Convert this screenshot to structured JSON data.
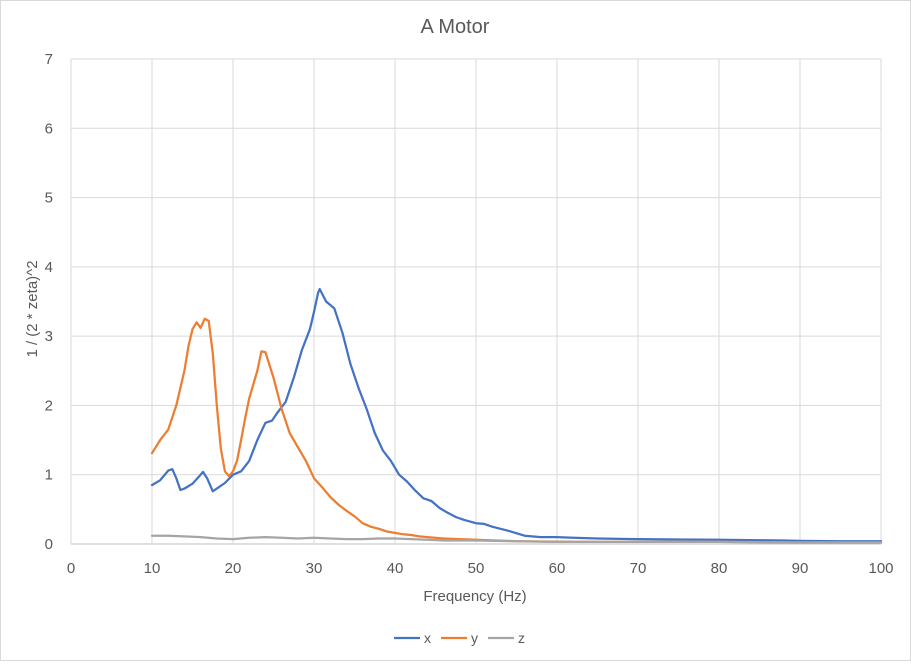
{
  "chart_data": {
    "type": "line",
    "title": "A Motor",
    "xlabel": "Frequency (Hz)",
    "ylabel": "1 / (2 * zeta)^2",
    "xlim": [
      0,
      100
    ],
    "ylim": [
      0,
      7
    ],
    "xticks": [
      0,
      10,
      20,
      30,
      40,
      50,
      60,
      70,
      80,
      90,
      100
    ],
    "yticks": [
      0,
      1,
      2,
      3,
      4,
      5,
      6,
      7
    ],
    "grid": true,
    "legend_position": "bottom",
    "series": [
      {
        "name": "x",
        "color": "#4472c4",
        "points": [
          [
            10,
            0.85
          ],
          [
            11,
            0.92
          ],
          [
            12,
            1.06
          ],
          [
            12.5,
            1.08
          ],
          [
            13,
            0.95
          ],
          [
            13.5,
            0.78
          ],
          [
            14,
            0.8
          ],
          [
            15,
            0.87
          ],
          [
            16,
            1.0
          ],
          [
            16.3,
            1.04
          ],
          [
            16.8,
            0.95
          ],
          [
            17.5,
            0.76
          ],
          [
            18,
            0.8
          ],
          [
            19,
            0.88
          ],
          [
            20,
            1.0
          ],
          [
            21,
            1.05
          ],
          [
            22,
            1.2
          ],
          [
            23,
            1.5
          ],
          [
            24,
            1.75
          ],
          [
            24.8,
            1.78
          ],
          [
            25.5,
            1.9
          ],
          [
            26.5,
            2.05
          ],
          [
            27.5,
            2.4
          ],
          [
            28.5,
            2.8
          ],
          [
            29.5,
            3.1
          ],
          [
            30,
            3.35
          ],
          [
            30.5,
            3.62
          ],
          [
            30.7,
            3.68
          ],
          [
            31.5,
            3.5
          ],
          [
            32.5,
            3.4
          ],
          [
            33.5,
            3.05
          ],
          [
            34.5,
            2.6
          ],
          [
            35.5,
            2.25
          ],
          [
            36.5,
            1.95
          ],
          [
            37.5,
            1.6
          ],
          [
            38.5,
            1.35
          ],
          [
            39.5,
            1.2
          ],
          [
            40.5,
            1.0
          ],
          [
            41.5,
            0.9
          ],
          [
            42.5,
            0.77
          ],
          [
            43.5,
            0.66
          ],
          [
            44.5,
            0.62
          ],
          [
            45.5,
            0.52
          ],
          [
            46.5,
            0.45
          ],
          [
            47.5,
            0.39
          ],
          [
            48.5,
            0.35
          ],
          [
            50,
            0.3
          ],
          [
            51,
            0.29
          ],
          [
            52,
            0.25
          ],
          [
            54,
            0.19
          ],
          [
            56,
            0.12
          ],
          [
            58,
            0.1
          ],
          [
            60,
            0.1
          ],
          [
            62,
            0.09
          ],
          [
            65,
            0.08
          ],
          [
            70,
            0.07
          ],
          [
            75,
            0.065
          ],
          [
            80,
            0.06
          ],
          [
            85,
            0.055
          ],
          [
            88,
            0.05
          ],
          [
            90,
            0.045
          ],
          [
            95,
            0.04
          ],
          [
            100,
            0.04
          ]
        ]
      },
      {
        "name": "y",
        "color": "#ed7d31",
        "points": [
          [
            10,
            1.31
          ],
          [
            11,
            1.5
          ],
          [
            12,
            1.65
          ],
          [
            13,
            2.0
          ],
          [
            14,
            2.5
          ],
          [
            14.5,
            2.85
          ],
          [
            15,
            3.1
          ],
          [
            15.5,
            3.2
          ],
          [
            16,
            3.12
          ],
          [
            16.5,
            3.25
          ],
          [
            17,
            3.22
          ],
          [
            17.5,
            2.75
          ],
          [
            18,
            2.0
          ],
          [
            18.5,
            1.38
          ],
          [
            19,
            1.05
          ],
          [
            19.5,
            0.98
          ],
          [
            20,
            1.05
          ],
          [
            20.5,
            1.2
          ],
          [
            21,
            1.5
          ],
          [
            21.5,
            1.82
          ],
          [
            22,
            2.1
          ],
          [
            23,
            2.5
          ],
          [
            23.5,
            2.78
          ],
          [
            24,
            2.77
          ],
          [
            25,
            2.4
          ],
          [
            26,
            1.95
          ],
          [
            27,
            1.6
          ],
          [
            28,
            1.4
          ],
          [
            29,
            1.2
          ],
          [
            30,
            0.95
          ],
          [
            31,
            0.82
          ],
          [
            32,
            0.68
          ],
          [
            33,
            0.57
          ],
          [
            34,
            0.48
          ],
          [
            35,
            0.4
          ],
          [
            36,
            0.3
          ],
          [
            37,
            0.25
          ],
          [
            38,
            0.22
          ],
          [
            39,
            0.18
          ],
          [
            40,
            0.16
          ],
          [
            41,
            0.14
          ],
          [
            42,
            0.13
          ],
          [
            43,
            0.11
          ],
          [
            44,
            0.1
          ],
          [
            46,
            0.08
          ],
          [
            48,
            0.07
          ],
          [
            50,
            0.06
          ],
          [
            55,
            0.04
          ],
          [
            60,
            0.035
          ],
          [
            65,
            0.03
          ],
          [
            70,
            0.03
          ],
          [
            80,
            0.03
          ],
          [
            90,
            0.025
          ],
          [
            100,
            0.025
          ]
        ]
      },
      {
        "name": "z",
        "color": "#a5a5a5",
        "points": [
          [
            10,
            0.12
          ],
          [
            12,
            0.12
          ],
          [
            14,
            0.11
          ],
          [
            16,
            0.1
          ],
          [
            18,
            0.08
          ],
          [
            20,
            0.07
          ],
          [
            22,
            0.09
          ],
          [
            24,
            0.1
          ],
          [
            26,
            0.09
          ],
          [
            28,
            0.08
          ],
          [
            30,
            0.09
          ],
          [
            32,
            0.08
          ],
          [
            34,
            0.07
          ],
          [
            36,
            0.07
          ],
          [
            38,
            0.08
          ],
          [
            40,
            0.08
          ],
          [
            42,
            0.07
          ],
          [
            44,
            0.06
          ],
          [
            46,
            0.05
          ],
          [
            48,
            0.05
          ],
          [
            50,
            0.05
          ],
          [
            55,
            0.04
          ],
          [
            60,
            0.03
          ],
          [
            70,
            0.03
          ],
          [
            80,
            0.03
          ],
          [
            90,
            0.02
          ],
          [
            100,
            0.02
          ]
        ]
      }
    ]
  }
}
